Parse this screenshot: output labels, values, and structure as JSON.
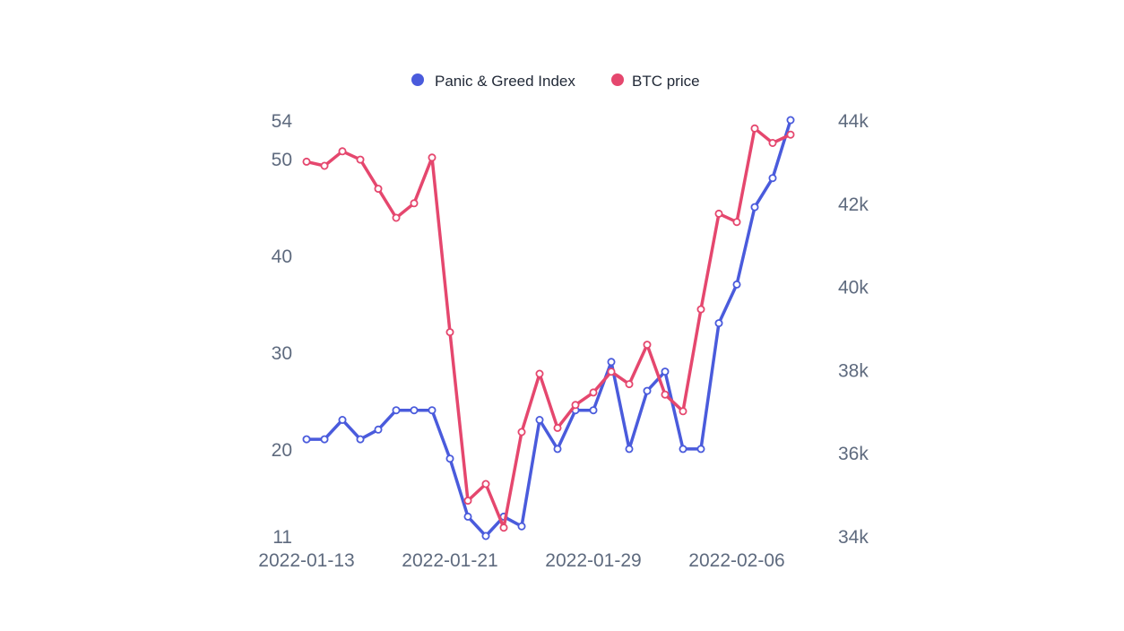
{
  "chart_data": {
    "type": "line",
    "legend_position": "top-center",
    "grid": false,
    "x": [
      "2022-01-13",
      "2022-01-14",
      "2022-01-15",
      "2022-01-16",
      "2022-01-17",
      "2022-01-18",
      "2022-01-19",
      "2022-01-20",
      "2022-01-21",
      "2022-01-22",
      "2022-01-23",
      "2022-01-24",
      "2022-01-25",
      "2022-01-26",
      "2022-01-27",
      "2022-01-28",
      "2022-01-29",
      "2022-01-30",
      "2022-01-31",
      "2022-02-01",
      "2022-02-02",
      "2022-02-03",
      "2022-02-04",
      "2022-02-05",
      "2022-02-06",
      "2022-02-07",
      "2022-02-08",
      "2022-02-09"
    ],
    "x_tick_labels": [
      "2022-01-13",
      "2022-01-21",
      "2022-01-29",
      "2022-02-06"
    ],
    "y_left": {
      "ticks": [
        "11",
        "20",
        "30",
        "40",
        "50",
        "54"
      ],
      "range": [
        11,
        54
      ]
    },
    "y_right": {
      "ticks": [
        "34k",
        "36k",
        "38k",
        "40k",
        "42k",
        "44k"
      ],
      "range": [
        34000,
        44000
      ]
    },
    "series": [
      {
        "name": "Panic & Greed Index",
        "color": "#4a5bdc",
        "axis": "left",
        "values": [
          21,
          21,
          23,
          21,
          22,
          24,
          24,
          24,
          19,
          13,
          11,
          13,
          12,
          23,
          20,
          24,
          24,
          29,
          20,
          26,
          28,
          20,
          20,
          33,
          37,
          45,
          48,
          54
        ]
      },
      {
        "name": "BTC price",
        "color": "#e5476e",
        "axis": "right",
        "values": [
          43000,
          42900,
          43250,
          43050,
          42350,
          41650,
          42000,
          43100,
          38900,
          34850,
          35250,
          34200,
          36500,
          37900,
          36600,
          37150,
          37450,
          37950,
          37650,
          38600,
          37400,
          37000,
          39450,
          41750,
          41550,
          43800,
          43450,
          43650
        ]
      }
    ]
  }
}
